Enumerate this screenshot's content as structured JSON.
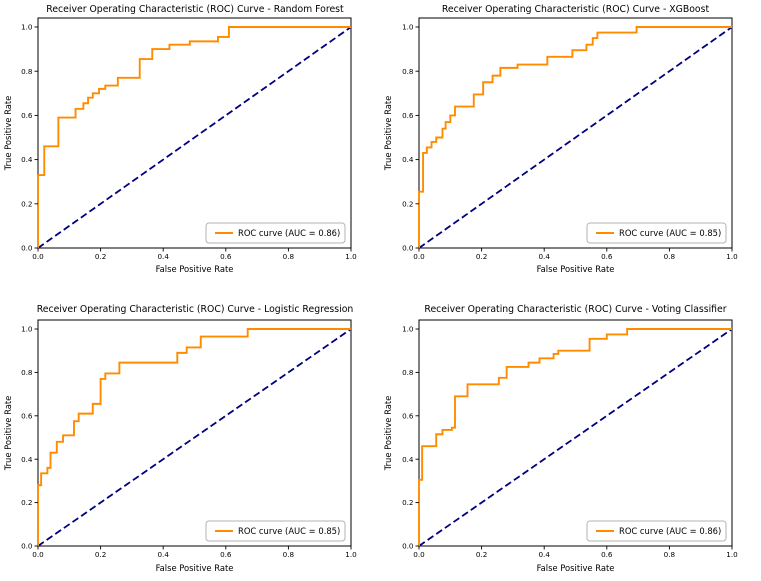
{
  "figure": {
    "background": "#ffffff",
    "layout": "2x2 grid of ROC subplots"
  },
  "colors": {
    "roc_curve": "#ff8c00",
    "chance_line": "#000080",
    "text": "#000000",
    "legend_border": "#b3b3b3"
  },
  "chart_data": [
    {
      "type": "line",
      "title": "Receiver Operating Characteristic (ROC) Curve - Random Forest",
      "xlabel": "False Positive Rate",
      "ylabel": "True Positive Rate",
      "xlim": [
        0.0,
        1.0
      ],
      "ylim": [
        0.0,
        1.04
      ],
      "xticks": [
        0.0,
        0.2,
        0.4,
        0.6,
        0.8,
        1.0
      ],
      "yticks": [
        0.0,
        0.2,
        0.4,
        0.6,
        0.8,
        1.0
      ],
      "grid": false,
      "auc": 0.86,
      "legend": {
        "position": "lower right",
        "label": "ROC curve (AUC = 0.86)"
      },
      "series": [
        {
          "name": "ROC curve",
          "color": "#ff8c00",
          "line_style": "solid",
          "points": [
            [
              0,
              0
            ],
            [
              0,
              0.33
            ],
            [
              0.02,
              0.33
            ],
            [
              0.02,
              0.46
            ],
            [
              0.065,
              0.46
            ],
            [
              0.065,
              0.59
            ],
            [
              0.12,
              0.59
            ],
            [
              0.12,
              0.63
            ],
            [
              0.145,
              0.63
            ],
            [
              0.145,
              0.655
            ],
            [
              0.16,
              0.655
            ],
            [
              0.16,
              0.68
            ],
            [
              0.175,
              0.68
            ],
            [
              0.175,
              0.7
            ],
            [
              0.195,
              0.7
            ],
            [
              0.195,
              0.72
            ],
            [
              0.215,
              0.72
            ],
            [
              0.215,
              0.735
            ],
            [
              0.255,
              0.735
            ],
            [
              0.255,
              0.77
            ],
            [
              0.325,
              0.77
            ],
            [
              0.325,
              0.855
            ],
            [
              0.365,
              0.855
            ],
            [
              0.365,
              0.9
            ],
            [
              0.42,
              0.9
            ],
            [
              0.42,
              0.92
            ],
            [
              0.485,
              0.92
            ],
            [
              0.485,
              0.935
            ],
            [
              0.575,
              0.935
            ],
            [
              0.575,
              0.955
            ],
            [
              0.61,
              0.955
            ],
            [
              0.61,
              1.0
            ],
            [
              1.0,
              1.0
            ]
          ]
        },
        {
          "name": "chance",
          "color": "#000080",
          "line_style": "dashed",
          "points": [
            [
              0,
              0
            ],
            [
              1,
              1
            ]
          ]
        }
      ]
    },
    {
      "type": "line",
      "title": "Receiver Operating Characteristic (ROC) Curve - XGBoost",
      "xlabel": "False Positive Rate",
      "ylabel": "True Positive Rate",
      "xlim": [
        0.0,
        1.0
      ],
      "ylim": [
        0.0,
        1.04
      ],
      "xticks": [
        0.0,
        0.2,
        0.4,
        0.6,
        0.8,
        1.0
      ],
      "yticks": [
        0.0,
        0.2,
        0.4,
        0.6,
        0.8,
        1.0
      ],
      "grid": false,
      "auc": 0.85,
      "legend": {
        "position": "lower right",
        "label": "ROC curve (AUC = 0.85)"
      },
      "series": [
        {
          "name": "ROC curve",
          "color": "#ff8c00",
          "line_style": "solid",
          "points": [
            [
              0,
              0
            ],
            [
              0,
              0.255
            ],
            [
              0.013,
              0.255
            ],
            [
              0.013,
              0.43
            ],
            [
              0.025,
              0.43
            ],
            [
              0.025,
              0.455
            ],
            [
              0.04,
              0.455
            ],
            [
              0.04,
              0.48
            ],
            [
              0.055,
              0.48
            ],
            [
              0.055,
              0.5
            ],
            [
              0.075,
              0.5
            ],
            [
              0.075,
              0.54
            ],
            [
              0.085,
              0.54
            ],
            [
              0.085,
              0.57
            ],
            [
              0.1,
              0.57
            ],
            [
              0.1,
              0.6
            ],
            [
              0.115,
              0.6
            ],
            [
              0.115,
              0.64
            ],
            [
              0.175,
              0.64
            ],
            [
              0.175,
              0.695
            ],
            [
              0.205,
              0.695
            ],
            [
              0.205,
              0.75
            ],
            [
              0.235,
              0.75
            ],
            [
              0.235,
              0.78
            ],
            [
              0.26,
              0.78
            ],
            [
              0.26,
              0.815
            ],
            [
              0.315,
              0.815
            ],
            [
              0.315,
              0.83
            ],
            [
              0.41,
              0.83
            ],
            [
              0.41,
              0.865
            ],
            [
              0.49,
              0.865
            ],
            [
              0.49,
              0.895
            ],
            [
              0.535,
              0.895
            ],
            [
              0.535,
              0.92
            ],
            [
              0.555,
              0.92
            ],
            [
              0.555,
              0.95
            ],
            [
              0.57,
              0.95
            ],
            [
              0.57,
              0.975
            ],
            [
              0.695,
              0.975
            ],
            [
              0.695,
              1.0
            ],
            [
              1.0,
              1.0
            ]
          ]
        },
        {
          "name": "chance",
          "color": "#000080",
          "line_style": "dashed",
          "points": [
            [
              0,
              0
            ],
            [
              1,
              1
            ]
          ]
        }
      ]
    },
    {
      "type": "line",
      "title": "Receiver Operating Characteristic (ROC) Curve - Logistic Regression",
      "xlabel": "False Positive Rate",
      "ylabel": "True Positive Rate",
      "xlim": [
        0.0,
        1.0
      ],
      "ylim": [
        0.0,
        1.04
      ],
      "xticks": [
        0.0,
        0.2,
        0.4,
        0.6,
        0.8,
        1.0
      ],
      "yticks": [
        0.0,
        0.2,
        0.4,
        0.6,
        0.8,
        1.0
      ],
      "grid": false,
      "auc": 0.85,
      "legend": {
        "position": "lower right",
        "label": "ROC curve (AUC = 0.85)"
      },
      "series": [
        {
          "name": "ROC curve",
          "color": "#ff8c00",
          "line_style": "solid",
          "points": [
            [
              0,
              0
            ],
            [
              0,
              0.28
            ],
            [
              0.01,
              0.28
            ],
            [
              0.01,
              0.335
            ],
            [
              0.03,
              0.335
            ],
            [
              0.03,
              0.36
            ],
            [
              0.04,
              0.36
            ],
            [
              0.04,
              0.43
            ],
            [
              0.06,
              0.43
            ],
            [
              0.06,
              0.48
            ],
            [
              0.08,
              0.48
            ],
            [
              0.08,
              0.51
            ],
            [
              0.115,
              0.51
            ],
            [
              0.115,
              0.575
            ],
            [
              0.13,
              0.575
            ],
            [
              0.13,
              0.61
            ],
            [
              0.175,
              0.61
            ],
            [
              0.175,
              0.655
            ],
            [
              0.2,
              0.655
            ],
            [
              0.2,
              0.77
            ],
            [
              0.215,
              0.77
            ],
            [
              0.215,
              0.795
            ],
            [
              0.26,
              0.795
            ],
            [
              0.26,
              0.845
            ],
            [
              0.445,
              0.845
            ],
            [
              0.445,
              0.89
            ],
            [
              0.475,
              0.89
            ],
            [
              0.475,
              0.915
            ],
            [
              0.52,
              0.915
            ],
            [
              0.52,
              0.965
            ],
            [
              0.67,
              0.965
            ],
            [
              0.67,
              1.0
            ],
            [
              1.0,
              1.0
            ]
          ]
        },
        {
          "name": "chance",
          "color": "#000080",
          "line_style": "dashed",
          "points": [
            [
              0,
              0
            ],
            [
              1,
              1
            ]
          ]
        }
      ]
    },
    {
      "type": "line",
      "title": "Receiver Operating Characteristic (ROC) Curve - Voting Classifier",
      "xlabel": "False Positive Rate",
      "ylabel": "True Positive Rate",
      "xlim": [
        0.0,
        1.0
      ],
      "ylim": [
        0.0,
        1.04
      ],
      "xticks": [
        0.0,
        0.2,
        0.4,
        0.6,
        0.8,
        1.0
      ],
      "yticks": [
        0.0,
        0.2,
        0.4,
        0.6,
        0.8,
        1.0
      ],
      "grid": false,
      "auc": 0.86,
      "legend": {
        "position": "lower right",
        "label": "ROC curve (AUC = 0.86)"
      },
      "series": [
        {
          "name": "ROC curve",
          "color": "#ff8c00",
          "line_style": "solid",
          "points": [
            [
              0,
              0
            ],
            [
              0,
              0.305
            ],
            [
              0.01,
              0.305
            ],
            [
              0.01,
              0.46
            ],
            [
              0.055,
              0.46
            ],
            [
              0.055,
              0.515
            ],
            [
              0.075,
              0.515
            ],
            [
              0.075,
              0.535
            ],
            [
              0.105,
              0.535
            ],
            [
              0.105,
              0.545
            ],
            [
              0.115,
              0.545
            ],
            [
              0.115,
              0.69
            ],
            [
              0.155,
              0.69
            ],
            [
              0.155,
              0.745
            ],
            [
              0.255,
              0.745
            ],
            [
              0.255,
              0.775
            ],
            [
              0.28,
              0.775
            ],
            [
              0.28,
              0.825
            ],
            [
              0.35,
              0.825
            ],
            [
              0.35,
              0.845
            ],
            [
              0.385,
              0.845
            ],
            [
              0.385,
              0.865
            ],
            [
              0.43,
              0.865
            ],
            [
              0.43,
              0.885
            ],
            [
              0.445,
              0.885
            ],
            [
              0.445,
              0.9
            ],
            [
              0.545,
              0.9
            ],
            [
              0.545,
              0.955
            ],
            [
              0.6,
              0.955
            ],
            [
              0.6,
              0.975
            ],
            [
              0.665,
              0.975
            ],
            [
              0.665,
              1.0
            ],
            [
              1.0,
              1.0
            ]
          ]
        },
        {
          "name": "chance",
          "color": "#000080",
          "line_style": "dashed",
          "points": [
            [
              0,
              0
            ],
            [
              1,
              1
            ]
          ]
        }
      ]
    }
  ]
}
